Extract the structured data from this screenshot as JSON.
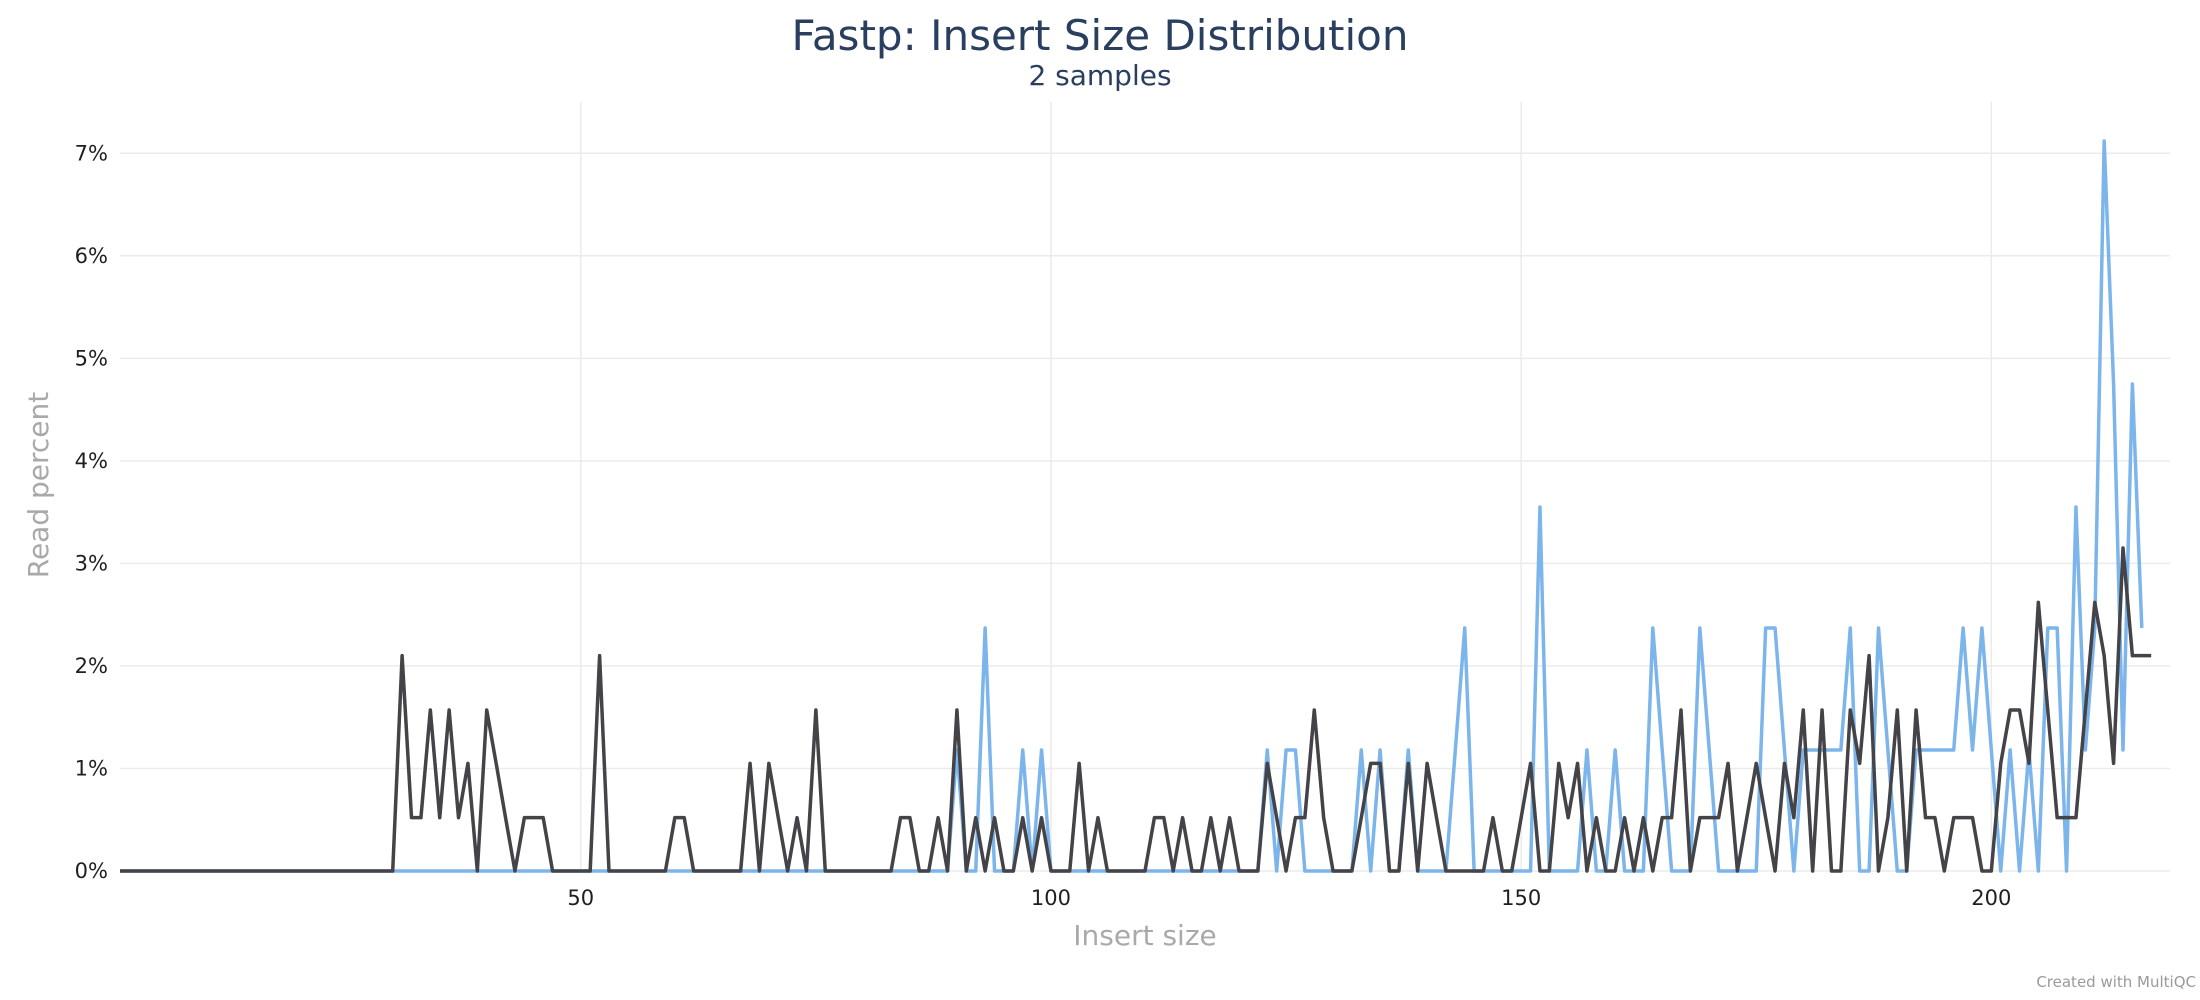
{
  "chart_data": {
    "type": "line",
    "title": "Fastp: Insert Size Distribution",
    "subtitle": "2 samples",
    "xlabel": "Insert size",
    "ylabel": "Read percent",
    "xlim": [
      1,
      219
    ],
    "ylim": [
      0,
      7.5
    ],
    "xticks": [
      50,
      100,
      150,
      200
    ],
    "yticks": [
      0,
      1,
      2,
      3,
      4,
      5,
      6,
      7
    ],
    "ytick_suffix": "%",
    "grid": true,
    "credit": "Created with MultiQC",
    "series": [
      {
        "color": "#7cb5ec",
        "x_start": 1,
        "values": [
          0,
          0,
          0,
          0,
          0,
          0,
          0,
          0,
          0,
          0,
          0,
          0,
          0,
          0,
          0,
          0,
          0,
          0,
          0,
          0,
          0,
          0,
          0,
          0,
          0,
          0,
          0,
          0,
          0,
          0,
          0,
          0,
          0,
          0,
          0,
          0,
          0,
          0,
          0,
          0,
          0,
          0,
          0,
          0,
          0,
          0,
          0,
          0,
          0,
          0,
          0,
          0,
          0,
          0,
          0,
          0,
          0,
          0,
          0,
          0,
          0,
          0,
          0,
          0,
          0,
          0,
          0,
          0,
          0,
          0,
          0,
          0,
          0,
          0,
          0,
          0,
          0,
          0,
          0,
          0,
          0,
          0,
          0,
          0,
          0,
          0,
          0,
          0,
          0,
          1.18,
          0,
          0,
          2.37,
          0,
          0,
          0,
          1.18,
          0,
          1.18,
          0,
          0,
          0,
          0,
          0,
          0,
          0,
          0,
          0,
          0,
          0,
          0,
          0,
          0,
          0,
          0,
          0,
          0,
          0,
          0,
          0,
          0,
          0,
          1.18,
          0,
          1.18,
          1.18,
          0,
          0,
          0,
          0,
          0,
          0,
          1.18,
          0,
          1.18,
          0,
          0,
          1.18,
          0,
          0,
          0,
          0,
          1.18,
          2.37,
          0,
          0,
          0,
          0,
          0,
          0,
          0,
          3.55,
          0,
          0,
          0,
          0,
          1.18,
          0,
          0,
          1.18,
          0,
          0,
          0,
          2.37,
          1.18,
          0,
          0,
          0,
          2.37,
          1.18,
          0,
          0,
          0,
          0,
          0,
          2.37,
          2.37,
          1.18,
          0,
          1.18,
          1.18,
          1.18,
          1.18,
          1.18,
          2.37,
          0,
          0,
          2.37,
          1.18,
          0,
          0,
          1.18,
          1.18,
          1.18,
          1.18,
          1.18,
          2.37,
          1.18,
          2.37,
          1.18,
          0,
          1.18,
          0,
          1.18,
          0,
          2.37,
          2.37,
          0,
          3.55,
          1.18,
          2.37,
          7.12,
          4.75,
          1.18,
          4.75,
          2.37
        ]
      },
      {
        "color": "#434348",
        "x_start": 1,
        "values": [
          0,
          0,
          0,
          0,
          0,
          0,
          0,
          0,
          0,
          0,
          0,
          0,
          0,
          0,
          0,
          0,
          0,
          0,
          0,
          0,
          0,
          0,
          0,
          0,
          0,
          0,
          0,
          0,
          0,
          0,
          2.1,
          0.52,
          0.52,
          1.57,
          0.52,
          1.57,
          0.52,
          1.05,
          0,
          1.57,
          1.05,
          0.52,
          0,
          0.52,
          0.52,
          0.52,
          0,
          0,
          0,
          0,
          0,
          2.1,
          0,
          0,
          0,
          0,
          0,
          0,
          0,
          0.52,
          0.52,
          0,
          0,
          0,
          0,
          0,
          0,
          1.05,
          0,
          1.05,
          0.52,
          0,
          0.52,
          0,
          1.57,
          0,
          0,
          0,
          0,
          0,
          0,
          0,
          0,
          0.52,
          0.52,
          0,
          0,
          0.52,
          0,
          1.57,
          0,
          0.52,
          0,
          0.52,
          0,
          0,
          0.52,
          0,
          0.52,
          0,
          0,
          0,
          1.05,
          0,
          0.52,
          0,
          0,
          0,
          0,
          0,
          0.52,
          0.52,
          0,
          0.52,
          0,
          0,
          0.52,
          0,
          0.52,
          0,
          0,
          0,
          1.05,
          0.52,
          0,
          0.52,
          0.52,
          1.57,
          0.52,
          0,
          0,
          0,
          0.52,
          1.05,
          1.05,
          0,
          0,
          1.05,
          0,
          1.05,
          0.52,
          0,
          0,
          0,
          0,
          0,
          0.52,
          0,
          0,
          0.52,
          1.05,
          0,
          0,
          1.05,
          0.52,
          1.05,
          0,
          0.52,
          0,
          0,
          0.52,
          0,
          0.52,
          0,
          0.52,
          0.52,
          1.57,
          0,
          0.52,
          0.52,
          0.52,
          1.05,
          0,
          0.52,
          1.05,
          0.52,
          0,
          1.05,
          0.52,
          1.57,
          0,
          1.57,
          0,
          0,
          1.57,
          1.05,
          2.1,
          0,
          0.52,
          1.57,
          0,
          1.57,
          0.52,
          0.52,
          0,
          0.52,
          0.52,
          0.52,
          0,
          0,
          1.05,
          1.57,
          1.57,
          1.05,
          2.62,
          1.57,
          0.52,
          0.52,
          0.52,
          1.57,
          2.62,
          2.1,
          1.05,
          3.15,
          2.1,
          2.1,
          2.1
        ]
      }
    ]
  }
}
